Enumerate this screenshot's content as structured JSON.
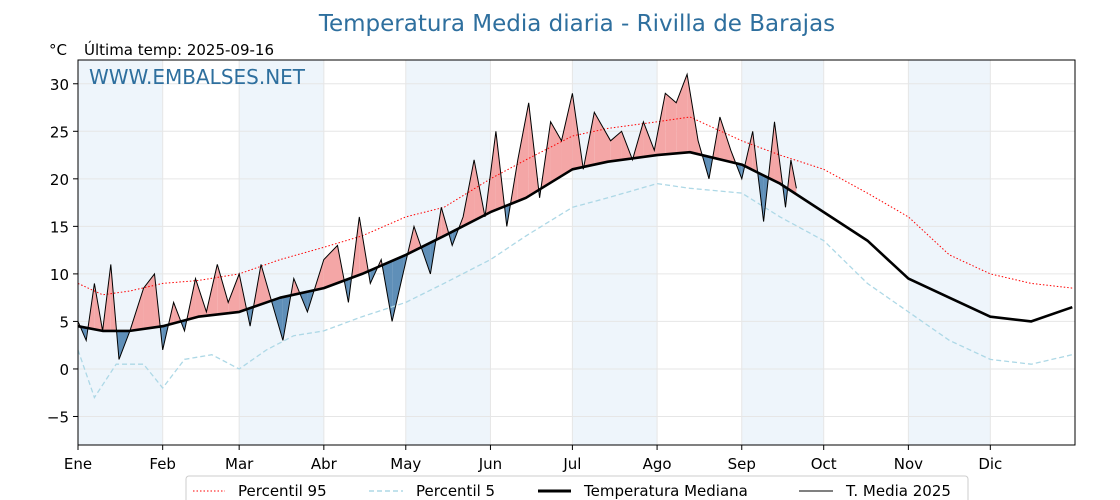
{
  "chart_data": {
    "type": "line",
    "title": "Temperatura Media diaria - Rivilla de Barajas",
    "unit_label": "°C",
    "last_temp_label": "Última temp: 2025-09-16",
    "watermark": "WWW.EMBALSES.NET",
    "ylim": [
      -8,
      32.5
    ],
    "yticks": [
      -5,
      0,
      5,
      10,
      15,
      20,
      25,
      30
    ],
    "months": [
      {
        "label": "Ene",
        "day": 1
      },
      {
        "label": "Feb",
        "day": 32
      },
      {
        "label": "Mar",
        "day": 60
      },
      {
        "label": "Abr",
        "day": 91
      },
      {
        "label": "May",
        "day": 121
      },
      {
        "label": "Jun",
        "day": 152
      },
      {
        "label": "Jul",
        "day": 182
      },
      {
        "label": "Ago",
        "day": 213
      },
      {
        "label": "Sep",
        "day": 244
      },
      {
        "label": "Oct",
        "day": 274
      },
      {
        "label": "Nov",
        "day": 305
      },
      {
        "label": "Dic",
        "day": 335
      }
    ],
    "colors": {
      "p95": "#ff0000",
      "p5": "#add8e6",
      "median": "#000000",
      "current": "#000000",
      "above_fill": "#f4a6a6",
      "below_fill": "#5f8fb8",
      "band": "#eef5fb",
      "title": "#2e6f9e"
    },
    "series": [
      {
        "name": "Percentil 95",
        "style": "dotted",
        "points": [
          [
            1,
            9
          ],
          [
            10,
            7.8
          ],
          [
            20,
            8.2
          ],
          [
            32,
            9
          ],
          [
            45,
            9.3
          ],
          [
            60,
            10
          ],
          [
            75,
            11.5
          ],
          [
            91,
            12.8
          ],
          [
            105,
            14
          ],
          [
            121,
            16
          ],
          [
            135,
            17
          ],
          [
            152,
            20
          ],
          [
            165,
            22
          ],
          [
            182,
            24.5
          ],
          [
            195,
            25.3
          ],
          [
            213,
            26
          ],
          [
            225,
            26.5
          ],
          [
            244,
            24
          ],
          [
            258,
            22.5
          ],
          [
            274,
            21
          ],
          [
            290,
            18.5
          ],
          [
            305,
            16
          ],
          [
            320,
            12
          ],
          [
            335,
            10
          ],
          [
            350,
            9
          ],
          [
            365,
            8.5
          ]
        ]
      },
      {
        "name": "Percentil 5",
        "style": "dashed",
        "points": [
          [
            1,
            2
          ],
          [
            7,
            -3
          ],
          [
            15,
            0.5
          ],
          [
            25,
            0.5
          ],
          [
            32,
            -2
          ],
          [
            40,
            1
          ],
          [
            50,
            1.5
          ],
          [
            60,
            0
          ],
          [
            70,
            2
          ],
          [
            80,
            3.5
          ],
          [
            91,
            4
          ],
          [
            105,
            5.5
          ],
          [
            121,
            7
          ],
          [
            135,
            9
          ],
          [
            152,
            11.5
          ],
          [
            165,
            14
          ],
          [
            182,
            17
          ],
          [
            195,
            18
          ],
          [
            213,
            19.5
          ],
          [
            225,
            19
          ],
          [
            244,
            18.5
          ],
          [
            258,
            16
          ],
          [
            274,
            13.5
          ],
          [
            290,
            9
          ],
          [
            305,
            6
          ],
          [
            320,
            3
          ],
          [
            335,
            1
          ],
          [
            350,
            0.5
          ],
          [
            365,
            1.5
          ]
        ]
      },
      {
        "name": "Temperatura Mediana",
        "style": "solid-thick",
        "points": [
          [
            1,
            4.5
          ],
          [
            10,
            4
          ],
          [
            20,
            4
          ],
          [
            32,
            4.5
          ],
          [
            45,
            5.5
          ],
          [
            60,
            6
          ],
          [
            75,
            7.5
          ],
          [
            91,
            8.5
          ],
          [
            105,
            10
          ],
          [
            121,
            12
          ],
          [
            135,
            14
          ],
          [
            152,
            16.5
          ],
          [
            165,
            18
          ],
          [
            182,
            21
          ],
          [
            195,
            21.8
          ],
          [
            213,
            22.5
          ],
          [
            225,
            22.8
          ],
          [
            244,
            21.5
          ],
          [
            258,
            19.5
          ],
          [
            274,
            16.5
          ],
          [
            290,
            13.5
          ],
          [
            305,
            9.5
          ],
          [
            320,
            7.5
          ],
          [
            335,
            5.5
          ],
          [
            350,
            5
          ],
          [
            365,
            6.5
          ]
        ]
      },
      {
        "name": "T. Media 2025",
        "style": "solid-thin",
        "points": [
          [
            1,
            5
          ],
          [
            4,
            3
          ],
          [
            7,
            9
          ],
          [
            10,
            4
          ],
          [
            13,
            11
          ],
          [
            16,
            1
          ],
          [
            20,
            4
          ],
          [
            25,
            8.5
          ],
          [
            29,
            10
          ],
          [
            32,
            2
          ],
          [
            36,
            7
          ],
          [
            40,
            4
          ],
          [
            44,
            9.5
          ],
          [
            48,
            6
          ],
          [
            52,
            11
          ],
          [
            56,
            7
          ],
          [
            60,
            10
          ],
          [
            64,
            4.5
          ],
          [
            68,
            11
          ],
          [
            72,
            7
          ],
          [
            76,
            3
          ],
          [
            80,
            9.5
          ],
          [
            85,
            6
          ],
          [
            91,
            11.5
          ],
          [
            96,
            13
          ],
          [
            100,
            7
          ],
          [
            104,
            16
          ],
          [
            108,
            9
          ],
          [
            112,
            11.5
          ],
          [
            116,
            5
          ],
          [
            120,
            10
          ],
          [
            124,
            15
          ],
          [
            130,
            10
          ],
          [
            134,
            17
          ],
          [
            138,
            13
          ],
          [
            142,
            16
          ],
          [
            146,
            22
          ],
          [
            150,
            16
          ],
          [
            154,
            25
          ],
          [
            158,
            15
          ],
          [
            162,
            22
          ],
          [
            166,
            28
          ],
          [
            170,
            18
          ],
          [
            174,
            26
          ],
          [
            178,
            24
          ],
          [
            182,
            29
          ],
          [
            186,
            21
          ],
          [
            190,
            27
          ],
          [
            196,
            24
          ],
          [
            200,
            25
          ],
          [
            204,
            22
          ],
          [
            208,
            26
          ],
          [
            212,
            23
          ],
          [
            216,
            29
          ],
          [
            220,
            28
          ],
          [
            224,
            31
          ],
          [
            228,
            24
          ],
          [
            232,
            20
          ],
          [
            236,
            26.5
          ],
          [
            240,
            23
          ],
          [
            244,
            20
          ],
          [
            248,
            25
          ],
          [
            252,
            15.5
          ],
          [
            256,
            26
          ],
          [
            260,
            17
          ],
          [
            262,
            22
          ],
          [
            264,
            19
          ]
        ]
      }
    ],
    "legend": [
      "Percentil 95",
      "Percentil 5",
      "Temperatura Mediana",
      "T. Media 2025"
    ],
    "legend_position": "bottom-center",
    "grid": true
  }
}
